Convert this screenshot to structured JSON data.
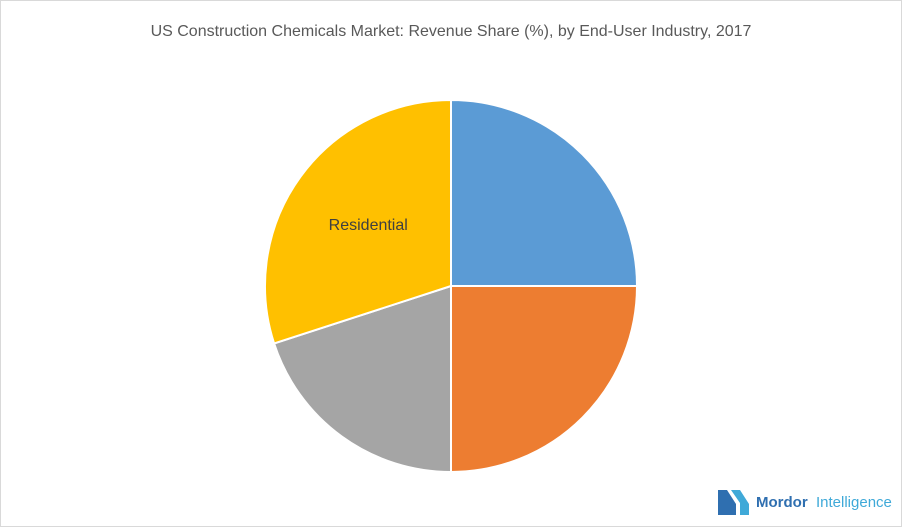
{
  "chart_data": {
    "type": "pie",
    "title": "US Construction Chemicals Market: Revenue Share (%), by End-User Industry, 2017",
    "categories": [
      null,
      null,
      null,
      "Residential"
    ],
    "values": [
      25,
      25,
      20,
      30
    ],
    "colors": [
      "#5b9bd5",
      "#ed7d31",
      "#a5a5a5",
      "#ffc000"
    ]
  },
  "logo": {
    "brand": "Mordor",
    "suffix": "Intelligence"
  }
}
